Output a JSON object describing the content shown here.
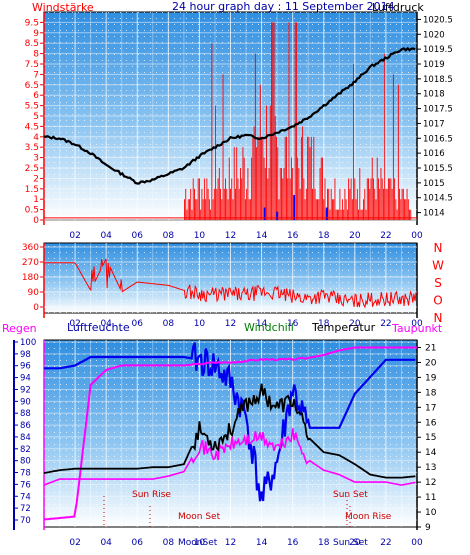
{
  "panel1": {
    "title": "24 hour graph day : 11 September 2014",
    "left_label": "Windstärke",
    "right_label": "Luftdruck",
    "left_ticks": [
      "9.5",
      "9",
      "8.5",
      "8",
      "7.5",
      "7",
      "6.5",
      "6",
      "5.5",
      "5",
      "4.5",
      "4",
      "3.5",
      "3",
      "2.5",
      "2",
      "1.5",
      "1",
      "0.5",
      "0"
    ],
    "right_ticks": [
      "1020.5",
      "1020",
      "1019.5",
      "1019",
      "1018.5",
      "1018",
      "1017.5",
      "1017",
      "1016.5",
      "1016",
      "1015.5",
      "1015",
      "1014.5",
      "1014"
    ],
    "x_ticks": [
      "02",
      "04",
      "06",
      "08",
      "10",
      "12",
      "14",
      "16",
      "18",
      "20",
      "22",
      "00"
    ]
  },
  "panel2": {
    "left_ticks": [
      "360",
      "270",
      "180",
      "90",
      "0"
    ],
    "directions": [
      "N",
      "W",
      "S",
      "O",
      "N"
    ],
    "x_ticks": [
      "02",
      "04",
      "06",
      "08",
      "10",
      "12",
      "14",
      "16",
      "18",
      "20",
      "22",
      "00"
    ]
  },
  "panel3": {
    "labels": {
      "regen": "Regen",
      "luftfeuchte": "Luftfeuchte",
      "windchill": "Windchill",
      "temperatur": "Temperatur",
      "taupunkt": "Taupunkt"
    },
    "left_ticks": [
      "100",
      "98",
      "96",
      "94",
      "92",
      "90",
      "88",
      "86",
      "84",
      "82",
      "80",
      "78",
      "76",
      "74",
      "72",
      "70"
    ],
    "right_ticks": [
      "21",
      "20",
      "19",
      "18",
      "17",
      "16",
      "15",
      "14",
      "13",
      "12",
      "11",
      "10",
      "9"
    ],
    "x_ticks": [
      "02",
      "04",
      "06",
      "08",
      "10",
      "12",
      "14",
      "16",
      "18",
      "20",
      "22",
      "00"
    ],
    "annotations": {
      "sun_rise": "Sun Rise",
      "sun_set": "Sun Set",
      "moon_set": "Moon Set",
      "moon_rise": "Moon Rise"
    },
    "bottom_labels": {
      "moon_set": "MoonSet",
      "sun_set": "Sun Set"
    }
  },
  "colors": {
    "wind": "#ff0000",
    "pressure": "#000000",
    "direction": "#ff0000",
    "humidity": "#0000ff",
    "temperature": "#000000",
    "dewpoint": "#ff00ff",
    "axis_red": "#ff0000",
    "axis_blue": "#0000aa"
  },
  "chart_data": [
    {
      "type": "line",
      "title": "24 hour graph day : 11 September 2014",
      "ylabel": "Windstärke",
      "y2label": "Luftdruck",
      "ylim": [
        0,
        10
      ],
      "y2lim": [
        1013.75,
        1020.75
      ],
      "x_hours": [
        0,
        1,
        2,
        3,
        4,
        5,
        6,
        7,
        8,
        9,
        10,
        11,
        12,
        13,
        14,
        15,
        16,
        17,
        18,
        19,
        20,
        21,
        22,
        23,
        24
      ],
      "series": [
        {
          "name": "Luftdruck",
          "axis": "right",
          "values": [
            1016.55,
            1016.5,
            1016.3,
            1016.0,
            1015.6,
            1015.3,
            1015.0,
            1015.1,
            1015.3,
            1015.5,
            1015.9,
            1016.2,
            1016.5,
            1016.6,
            1016.5,
            1016.7,
            1016.9,
            1017.2,
            1017.6,
            1018.0,
            1018.4,
            1018.9,
            1019.2,
            1019.5,
            1019.5
          ]
        },
        {
          "name": "Windstärke",
          "axis": "left",
          "values": [
            0,
            0,
            0,
            0,
            0,
            0,
            0,
            0,
            0,
            1.2,
            1.5,
            1.8,
            2.2,
            2.5,
            4.5,
            3.5,
            2.5,
            3,
            2,
            1.2,
            1.5,
            2,
            1.5,
            1.2,
            0.5
          ]
        }
      ]
    },
    {
      "type": "line",
      "ylim": [
        0,
        360
      ],
      "x_hours": [
        0,
        1,
        2,
        3,
        4,
        5,
        6,
        7,
        8,
        9,
        10,
        11,
        12,
        13,
        14,
        15,
        16,
        17,
        18,
        19,
        20,
        21,
        22,
        23,
        24
      ],
      "series": [
        {
          "name": "Windrichtung",
          "values": [
            265,
            265,
            265,
            100,
            290,
            90,
            150,
            140,
            130,
            100,
            80,
            75,
            80,
            70,
            90,
            85,
            60,
            55,
            70,
            40,
            35,
            45,
            50,
            45,
            60
          ]
        }
      ]
    },
    {
      "type": "line",
      "ylim": [
        70,
        100
      ],
      "y2lim": [
        9,
        21.5
      ],
      "x_hours": [
        0,
        1,
        2,
        3,
        4,
        5,
        6,
        7,
        8,
        9,
        10,
        11,
        12,
        13,
        14,
        15,
        16,
        17,
        18,
        19,
        20,
        21,
        22,
        23,
        24
      ],
      "series": [
        {
          "name": "Luftfeuchte",
          "axis": "left",
          "values": [
            96.5,
            96.5,
            97,
            98.5,
            98.5,
            98.5,
            98.5,
            98.5,
            98.5,
            98.5,
            98,
            97,
            94,
            88,
            73,
            80,
            93,
            86,
            86,
            86,
            92,
            95,
            98,
            98,
            98
          ]
        },
        {
          "name": "Temperatur",
          "axis": "right",
          "values": [
            12.6,
            12.8,
            12.9,
            12.9,
            12.9,
            12.9,
            12.9,
            13.0,
            13.0,
            13.2,
            15.5,
            14.5,
            15.5,
            17.2,
            18.0,
            17.0,
            17.5,
            15.0,
            14.0,
            13.8,
            13.2,
            12.5,
            12.3,
            12.3,
            12.4
          ]
        },
        {
          "name": "Taupunkt",
          "axis": "right",
          "values": [
            9.5,
            9.6,
            9.7,
            18.5,
            19.5,
            19.8,
            19.8,
            19.8,
            19.8,
            19.8,
            19.9,
            20.0,
            20.0,
            20.1,
            20.2,
            20.2,
            20.2,
            20.3,
            20.5,
            20.8,
            21.0,
            21.0,
            21.0,
            21.0,
            21.0
          ]
        },
        {
          "name": "Windchill",
          "axis": "right",
          "values": [
            11.8,
            12.2,
            12.2,
            12.2,
            12.2,
            12.2,
            12.2,
            12.2,
            12.4,
            12.7,
            14.5,
            13.8,
            14.5,
            14.8,
            15.0,
            14.2,
            15.2,
            13.5,
            12.8,
            12.5,
            12.0,
            12.0,
            12.0,
            11.8,
            12.0
          ]
        }
      ]
    }
  ]
}
